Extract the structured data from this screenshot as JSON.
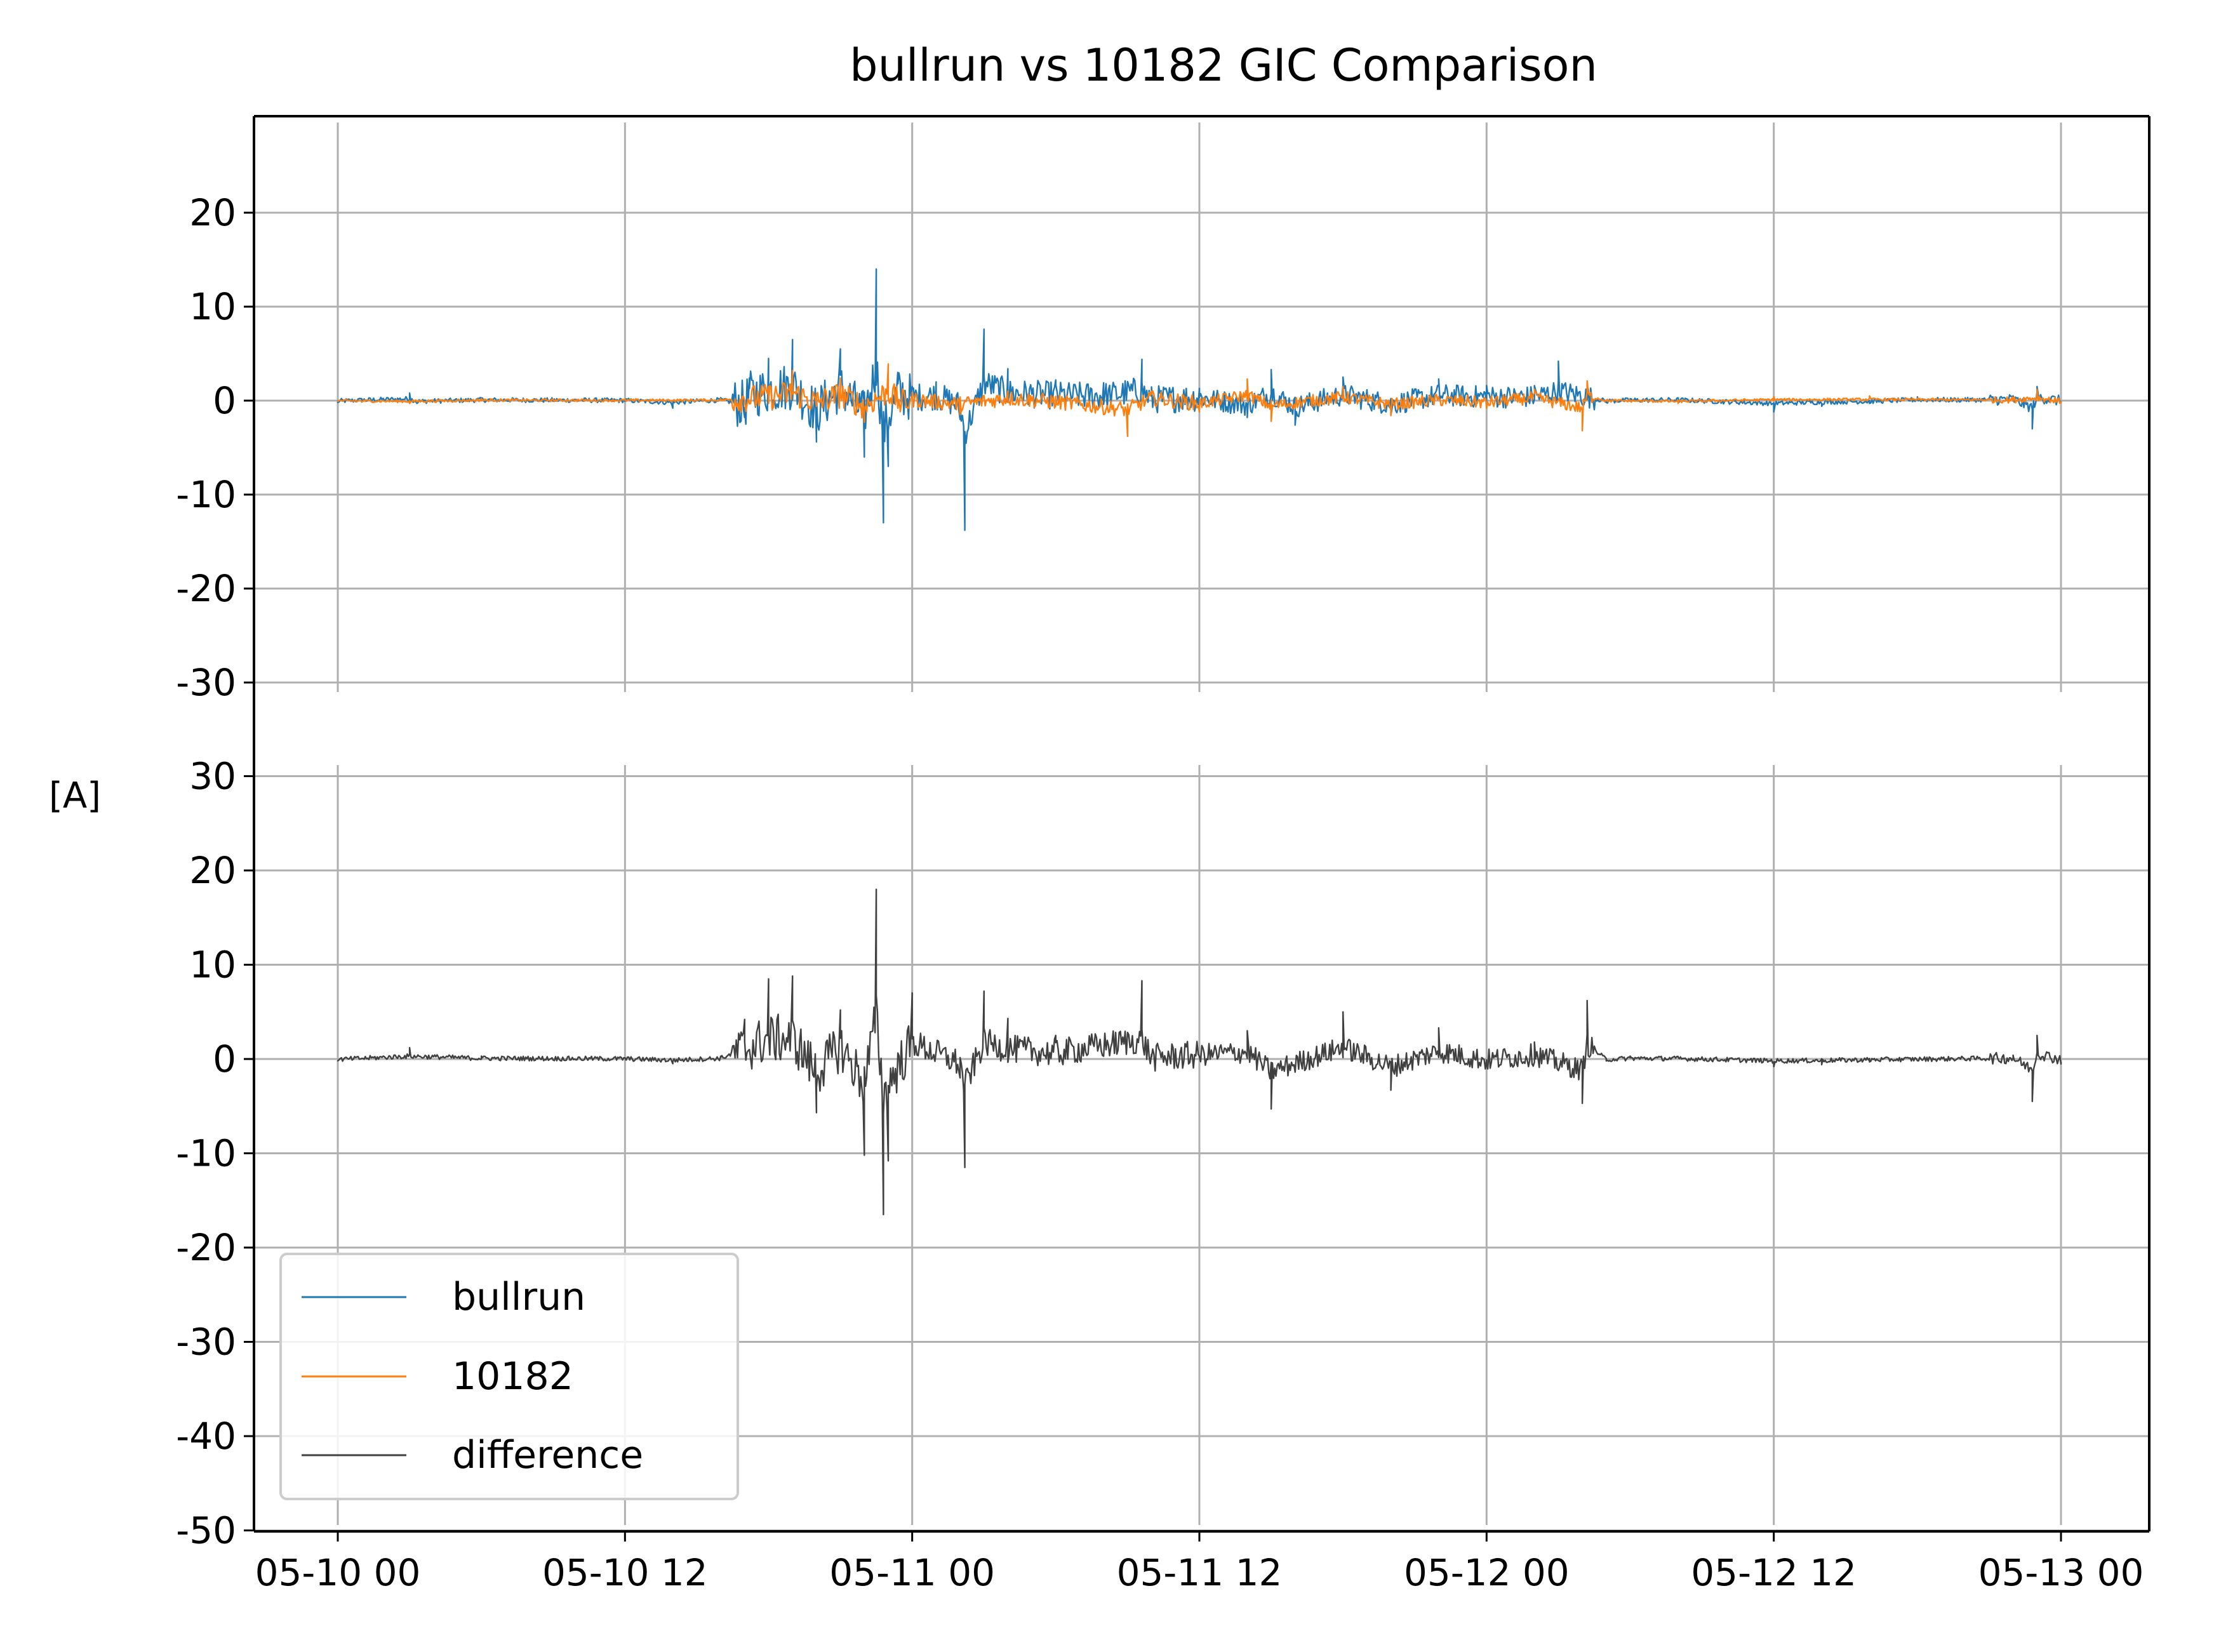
{
  "chart_data": {
    "type": "line",
    "title": "bullrun vs 10182 GIC Comparison",
    "ylabel": "[A]",
    "xlabel": "",
    "x_tick_labels": [
      "05-10 00",
      "05-10 12",
      "05-11 00",
      "05-11 12",
      "05-12 00",
      "05-12 12",
      "05-13 00"
    ],
    "x_range": [
      "05-10 00",
      "05-13 00"
    ],
    "grid": true,
    "legend_position": "lower-left",
    "panels": [
      {
        "id": "top",
        "ylim": [
          -30,
          30
        ],
        "y_ticks": [
          20,
          10,
          0,
          -10,
          -20,
          -30
        ],
        "series": [
          "bullrun",
          "10182"
        ]
      },
      {
        "id": "bottom",
        "ylim": [
          -50,
          30
        ],
        "y_ticks": [
          30,
          20,
          10,
          0,
          -10,
          -20,
          -30,
          -40,
          -50
        ],
        "series": [
          "difference"
        ]
      }
    ],
    "series": [
      {
        "name": "bullrun",
        "color": "#1f77b4",
        "x_hours": [
          0,
          1,
          3,
          3.3,
          6,
          12,
          14,
          16,
          17,
          17.2,
          18,
          19,
          20,
          21,
          22,
          22.5,
          22.8,
          23,
          23.4,
          24,
          25,
          26,
          26.2,
          27,
          28,
          30,
          32,
          33.6,
          34,
          36,
          38,
          39,
          40,
          42,
          44,
          46,
          48,
          50,
          51,
          53,
          54,
          56,
          60,
          62,
          64,
          66,
          68,
          70,
          70.8,
          71,
          72
        ],
        "values": [
          -0.2,
          0.2,
          0.8,
          -0.3,
          0.3,
          0.1,
          -0.8,
          0.3,
          -1.8,
          2.4,
          4.5,
          6.5,
          -4.4,
          5.5,
          -6.0,
          14.0,
          -13.0,
          -7.0,
          3.0,
          1.5,
          2.0,
          -2.0,
          -13.8,
          7.6,
          3.4,
          2.2,
          1.9,
          4.4,
          0.5,
          1.3,
          -1.8,
          3.3,
          -2.6,
          2.5,
          -1.5,
          2.3,
          1.6,
          1.6,
          4.2,
          -0.2,
          0.2,
          0.3,
          -1.2,
          -0.6,
          -0.3,
          0.4,
          0.3,
          0.5,
          -3.0,
          1.5,
          -0.2
        ]
      },
      {
        "name": "10182",
        "color": "#ff7f0e",
        "x_hours": [
          0,
          3,
          6,
          12,
          16,
          18,
          19,
          20,
          21,
          22,
          23,
          23.5,
          24,
          26,
          28,
          30,
          33,
          34,
          36,
          38,
          39,
          42,
          44,
          46,
          48,
          50,
          52,
          52.2,
          53,
          56,
          60,
          64,
          70,
          71,
          72
        ],
        "values": [
          -0.1,
          -0.3,
          0.2,
          0.1,
          0.2,
          1.5,
          3.2,
          -0.6,
          2.4,
          -2.3,
          3.9,
          -1.0,
          0.5,
          -1.5,
          1.0,
          -0.5,
          -3.8,
          1.0,
          -1.2,
          2.3,
          -2.2,
          1.5,
          -1.6,
          0.2,
          -0.8,
          1.2,
          -3.2,
          2.1,
          0.0,
          -0.3,
          0.4,
          0.5,
          0.3,
          1.2,
          -0.3
        ]
      },
      {
        "name": "difference",
        "color": "#404040",
        "x_hours": [
          0,
          3,
          6,
          12,
          14,
          16,
          17,
          18,
          19,
          20,
          21,
          22,
          22.5,
          22.8,
          23,
          24,
          26,
          26.2,
          27,
          28,
          30,
          33.6,
          34,
          38,
          39,
          42,
          44,
          46,
          48,
          50,
          52,
          52.2,
          53,
          54,
          56,
          60,
          62,
          64,
          70,
          70.8,
          71,
          72
        ],
        "values": [
          -0.2,
          1.2,
          0.3,
          0.1,
          -0.5,
          0.3,
          4.2,
          8.5,
          8.8,
          -5.7,
          5.2,
          -10.2,
          18.0,
          -16.5,
          -10.8,
          7.0,
          -2.0,
          -11.5,
          7.2,
          4.3,
          2.5,
          8.3,
          0.5,
          3.0,
          -5.3,
          5.0,
          -3.3,
          3.3,
          -0.5,
          1.8,
          -4.7,
          6.2,
          -0.2,
          0.3,
          0.2,
          -0.8,
          -0.6,
          -0.3,
          0.4,
          -4.5,
          2.5,
          -0.3
        ]
      }
    ]
  }
}
